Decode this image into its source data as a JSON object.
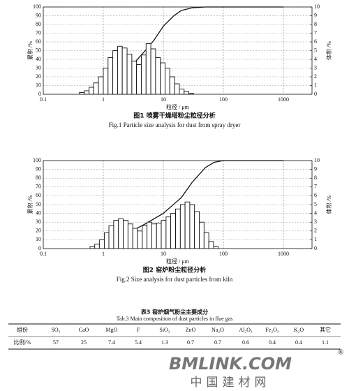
{
  "chart_data": [
    {
      "type": "combo",
      "y_label": "累积 /%",
      "y2_label": "体积 /%",
      "x_label": "粒径 / μm",
      "xlim": [
        0.1,
        3000
      ],
      "xticks": [
        0.1,
        1,
        10,
        100,
        1000
      ],
      "xscale": "log",
      "ylim": [
        0,
        100
      ],
      "yticks": [
        0,
        10,
        20,
        30,
        40,
        50,
        60,
        70,
        80,
        90,
        100
      ],
      "y2lim": [
        0,
        10
      ],
      "y2ticks": [
        0,
        1,
        2,
        3,
        4,
        5,
        6,
        7,
        8,
        9,
        10
      ],
      "grid": true,
      "caption": "图1 喷雾干燥塔粉尘粒径分析",
      "caption_en": "Fig.1 Particle size analysis for dust from spray dryer",
      "series": [
        {
          "type": "line",
          "color": "#111",
          "x": [
            0.4,
            0.6,
            1,
            1.5,
            2,
            3,
            5,
            7,
            10,
            15,
            20,
            30,
            50,
            1000
          ],
          "values": [
            0,
            1,
            5,
            12,
            20,
            33,
            50,
            62,
            78,
            90,
            96,
            99,
            100,
            100
          ]
        },
        {
          "type": "histogram",
          "axis": "y2",
          "color": "#111",
          "bins": [
            0.4,
            0.48,
            0.58,
            0.69,
            0.83,
            1.0,
            1.2,
            1.44,
            1.73,
            2.07,
            2.49,
            2.99,
            3.58,
            4.3,
            5.16,
            6.19,
            7.43,
            8.92,
            10.7,
            12.8,
            15.4,
            18.5,
            22.2,
            26.6,
            32
          ],
          "values": [
            0.2,
            0.4,
            0.8,
            1.3,
            2.0,
            3.0,
            4.2,
            5.0,
            5.5,
            5.3,
            4.6,
            3.8,
            3.4,
            4.5,
            5.8,
            5.2,
            4.2,
            3.6,
            3.0,
            2.0,
            1.2,
            0.6,
            0.3,
            0.1
          ]
        }
      ]
    },
    {
      "type": "combo",
      "y_label": "累积 /%",
      "y2_label": "体积 /%",
      "x_label": "粒径 / μm",
      "xlim": [
        0.1,
        3000
      ],
      "xticks": [
        0.1,
        1,
        10,
        100,
        1000
      ],
      "xscale": "log",
      "ylim": [
        0,
        100
      ],
      "yticks": [
        0,
        10,
        20,
        30,
        40,
        50,
        60,
        70,
        80,
        90,
        100
      ],
      "y2lim": [
        0,
        10
      ],
      "y2ticks": [
        0,
        1,
        2,
        3,
        4,
        5,
        6,
        7,
        8,
        9,
        10
      ],
      "grid": true,
      "caption": "图2 窑炉粉尘粒径分析",
      "caption_en": "Fig.2 Size analysis for dust particles from kiln",
      "series": [
        {
          "type": "line",
          "color": "#111",
          "x": [
            0.6,
            1,
            2,
            3,
            5,
            10,
            20,
            30,
            50,
            70,
            100,
            1000
          ],
          "values": [
            0,
            3,
            12,
            20,
            28,
            40,
            58,
            75,
            92,
            98,
            100,
            100
          ]
        },
        {
          "type": "histogram",
          "axis": "y2",
          "color": "#111",
          "bins": [
            0.6,
            0.72,
            0.86,
            1.04,
            1.24,
            1.49,
            1.79,
            2.15,
            2.58,
            3.1,
            3.72,
            4.46,
            5.35,
            6.42,
            7.7,
            9.24,
            11.1,
            13.3,
            16,
            19.2,
            23,
            27.6,
            33.1,
            39.7,
            47.7,
            57.2,
            68.7,
            82.4
          ],
          "values": [
            0.2,
            0.5,
            1.0,
            1.8,
            2.6,
            3.2,
            3.4,
            3.2,
            2.8,
            2.3,
            2.0,
            2.6,
            3.0,
            2.8,
            2.9,
            3.2,
            3.6,
            4.0,
            4.5,
            5.0,
            5.3,
            5.0,
            4.2,
            3.0,
            1.8,
            0.8,
            0.2
          ]
        }
      ]
    }
  ],
  "table": {
    "title": "表3 窑炉烟气粉尘主要成分",
    "title_en": "Tab.3 Main composition of dust particles in flue gas",
    "rows": [
      [
        "组份",
        "SO₃",
        "CaO",
        "MgO",
        "F",
        "SiO₂",
        "ZnO",
        "Na₂O",
        "Al₂O₃",
        "Fe₂O₃",
        "K₂O",
        "其它"
      ],
      [
        "比例/%",
        57,
        25,
        7.4,
        5.4,
        1.3,
        0.7,
        0.7,
        0.6,
        0.4,
        0.4,
        1.1
      ]
    ]
  },
  "watermark": {
    "text": "BMLINK.COM",
    "mark": "®",
    "subtitle": "中国建材网"
  }
}
